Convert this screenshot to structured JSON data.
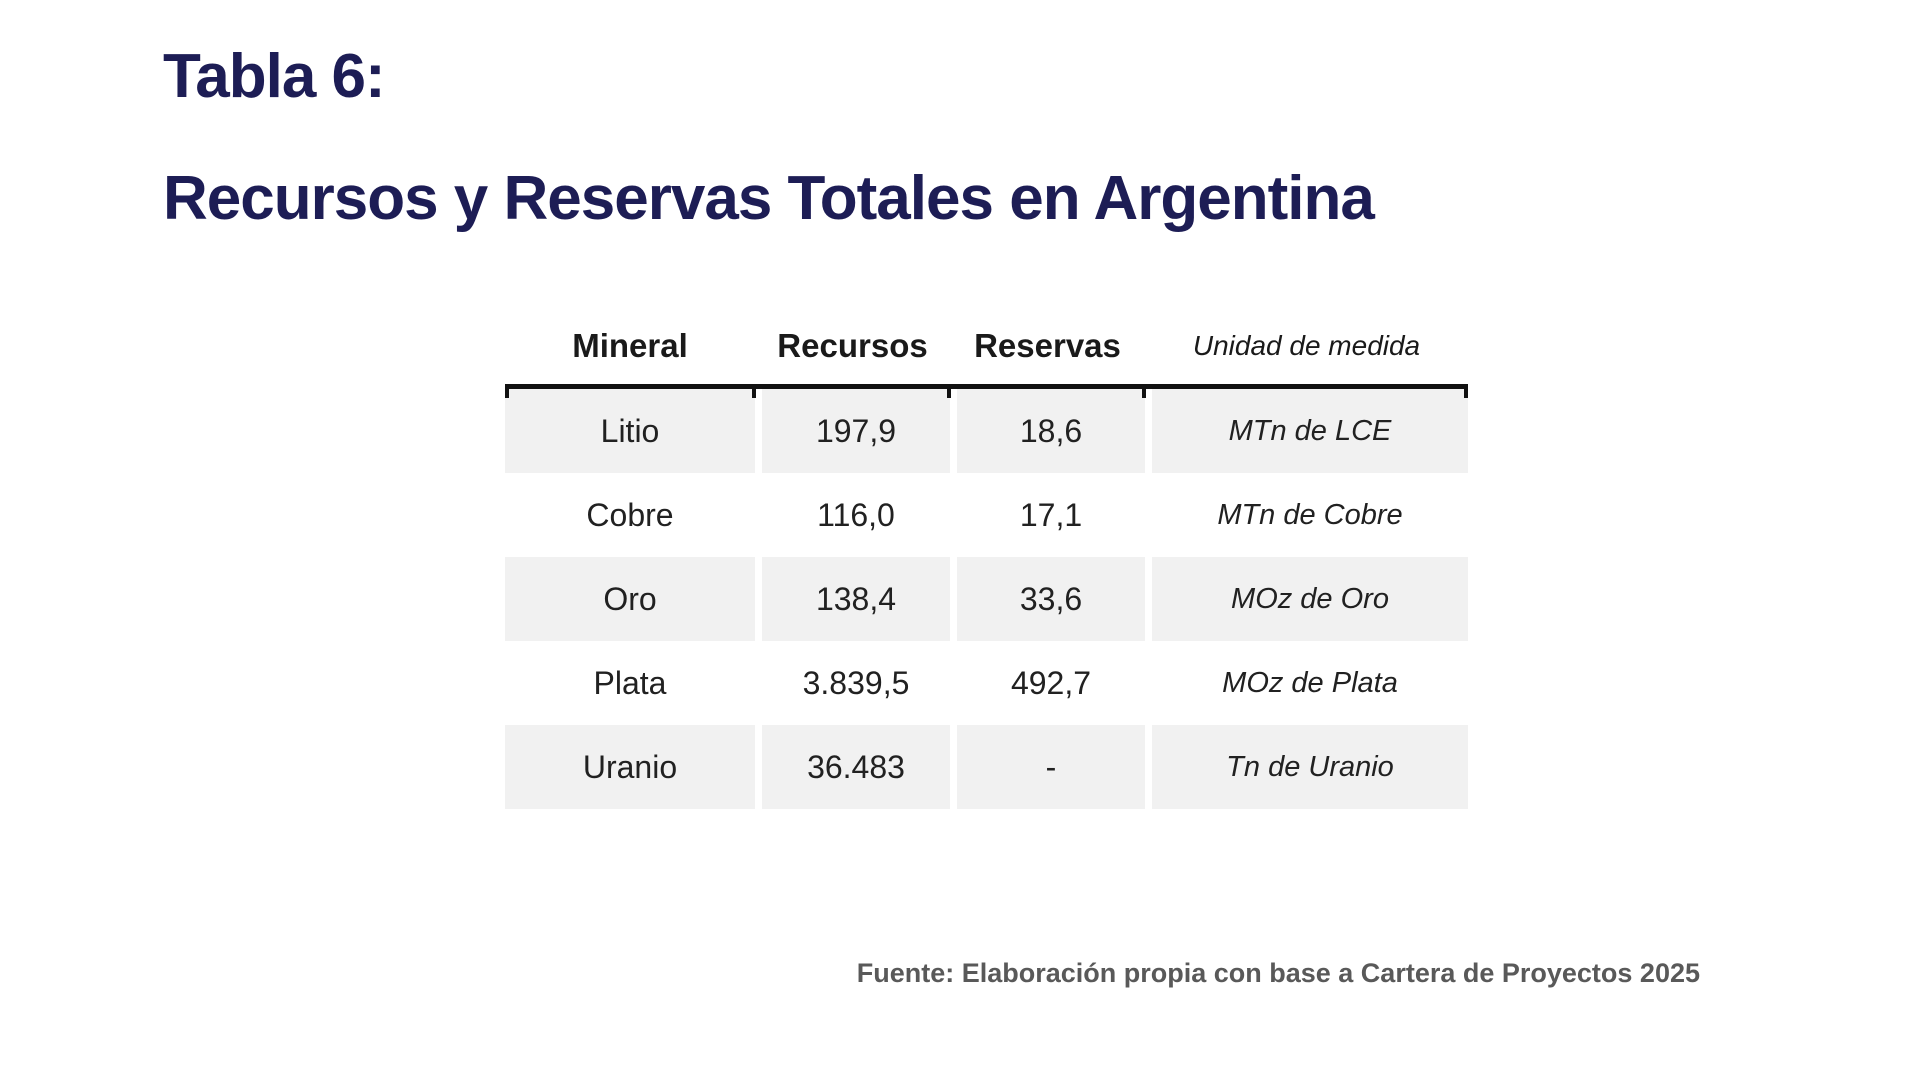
{
  "header": {
    "label": "Tabla 6:",
    "title": "Recursos y Reservas Totales en Argentina"
  },
  "chart_data": {
    "type": "table",
    "title": "Tabla 6: Recursos y Reservas Totales en Argentina",
    "columns": [
      "Mineral",
      "Recursos",
      "Reservas",
      "Unidad de medida"
    ],
    "rows": [
      [
        "Litio",
        "197,9",
        "18,6",
        "MTn de LCE"
      ],
      [
        "Cobre",
        "116,0",
        "17,1",
        "MTn de Cobre"
      ],
      [
        "Oro",
        "138,4",
        "33,6",
        "MOz de Oro"
      ],
      [
        "Plata",
        "3.839,5",
        "492,7",
        "MOz de Plata"
      ],
      [
        "Uranio",
        "36.483",
        "-",
        "Tn de Uranio"
      ]
    ]
  },
  "footer": {
    "source": "Fuente: Elaboración propia con base a Cartera de Proyectos 2025"
  },
  "colors": {
    "title_navy": "#1d1d55",
    "row_stripe": "#f1f1f1",
    "separator": "#111111",
    "body_text": "#212121",
    "source_text": "#595959"
  }
}
